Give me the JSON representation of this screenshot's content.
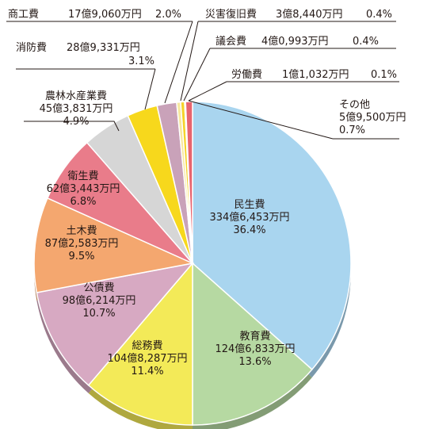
{
  "chart_data": {
    "type": "pie",
    "title": "",
    "unit": "万円",
    "slices": [
      {
        "name": "民生費",
        "amount": "334億6,453万円",
        "percent": "36.4%",
        "value": 36.4,
        "color": "#a9d5ef"
      },
      {
        "name": "教育費",
        "amount": "124億6,833万円",
        "percent": "13.6%",
        "value": 13.6,
        "color": "#b6d9a2"
      },
      {
        "name": "総務費",
        "amount": "104億8,287万円",
        "percent": "11.4%",
        "value": 11.4,
        "color": "#f3ea58"
      },
      {
        "name": "公債費",
        "amount": "98億6,214万円",
        "percent": "10.7%",
        "value": 10.7,
        "color": "#d7a9c2"
      },
      {
        "name": "土木費",
        "amount": "87億2,583万円",
        "percent": "9.5%",
        "value": 9.5,
        "color": "#f4a76f"
      },
      {
        "name": "衛生費",
        "amount": "62億3,443万円",
        "percent": "6.8%",
        "value": 6.8,
        "color": "#e97c8a"
      },
      {
        "name": "農林水産業費",
        "amount": "45億3,831万円",
        "percent": "4.9%",
        "value": 4.9,
        "color": "#d6d6d6"
      },
      {
        "name": "消防費",
        "amount": "28億9,331万円",
        "percent": "3.1%",
        "value": 3.1,
        "color": "#f7d81c"
      },
      {
        "name": "商工費",
        "amount": "17億9,060万円",
        "percent": "2.0%",
        "value": 2.0,
        "color": "#c9a2b9"
      },
      {
        "name": "災害復旧費",
        "amount": "3億8,440万円",
        "percent": "0.4%",
        "value": 0.4,
        "color": "#f7e8a0"
      },
      {
        "name": "議会費",
        "amount": "4億0,993万円",
        "percent": "0.4%",
        "value": 0.4,
        "color": "#f5d32a"
      },
      {
        "name": "労働費",
        "amount": "1億1,032万円",
        "percent": "0.1%",
        "value": 0.1,
        "color": "#f0b7b0"
      },
      {
        "name": "その他",
        "amount": "5億9,500万円",
        "percent": "0.7%",
        "value": 0.7,
        "color": "#e8646e"
      }
    ]
  }
}
